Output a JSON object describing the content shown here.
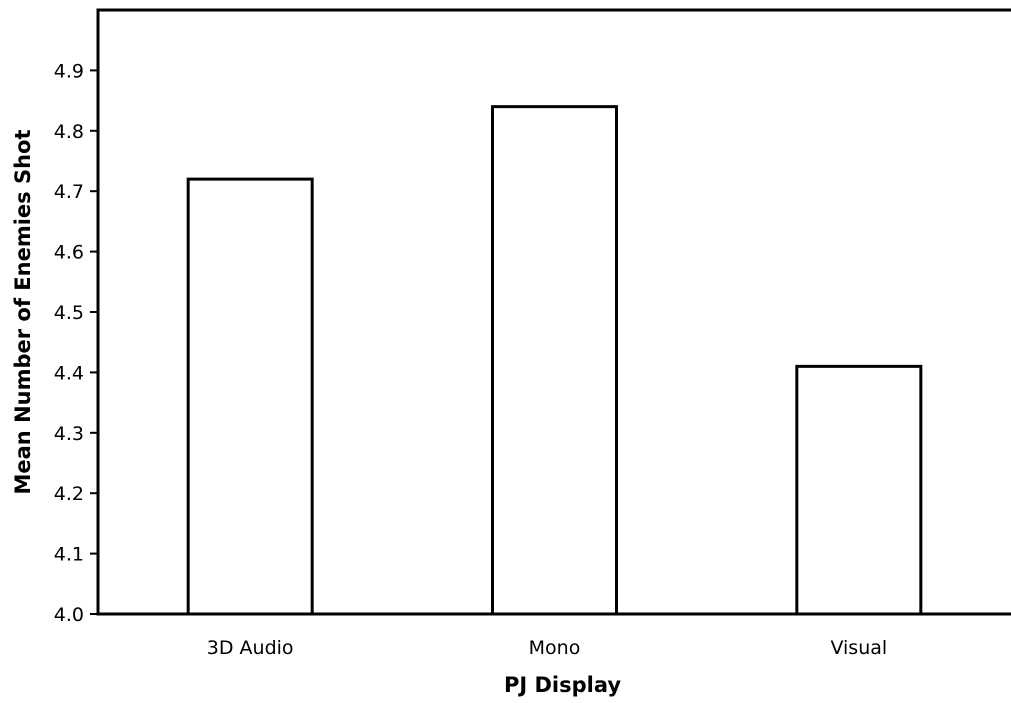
{
  "chart_data": {
    "type": "bar",
    "title": "",
    "xlabel": "PJ Display",
    "ylabel": "Mean Number of Enemies Shot",
    "categories": [
      "3D Audio",
      "Mono",
      "Visual"
    ],
    "values": [
      4.72,
      4.84,
      4.41
    ],
    "ylim": [
      4.0,
      5.0
    ],
    "yticks": [
      "4.0",
      "4.1",
      "4.2",
      "4.3",
      "4.4",
      "4.5",
      "4.6",
      "4.7",
      "4.8",
      "4.9"
    ],
    "grid": false,
    "legend": "none",
    "colors": {
      "bar_fill": "#ffffff",
      "bar_stroke": "#000000",
      "axis": "#000000"
    }
  }
}
